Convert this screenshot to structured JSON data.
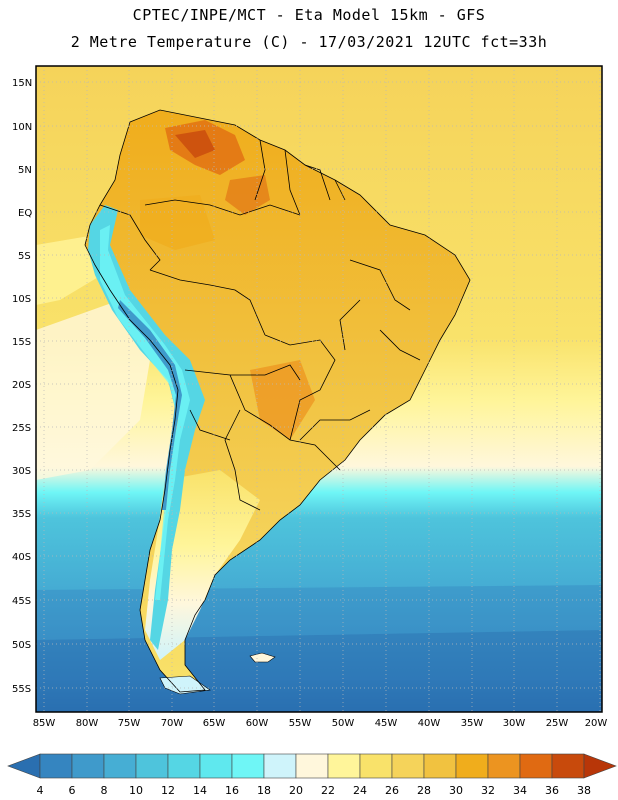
{
  "header": {
    "line1": "CPTEC/INPE/MCT -  Eta Model 15km - GFS",
    "line2": "2 Metre Temperature (C) - 17/03/2021 12UTC fct=33h"
  },
  "latitude_labels": [
    "15N",
    "10N",
    "5N",
    "EQ",
    "5S",
    "10S",
    "15S",
    "20S",
    "25S",
    "30S",
    "35S",
    "40S",
    "45S",
    "50S",
    "55S"
  ],
  "longitude_labels": [
    "85W",
    "80W",
    "75W",
    "70W",
    "65W",
    "60W",
    "55W",
    "50W",
    "45W",
    "40W",
    "35W",
    "30W",
    "25W",
    "20W"
  ],
  "legend": {
    "values": [
      "4",
      "6",
      "8",
      "10",
      "12",
      "14",
      "16",
      "18",
      "20",
      "22",
      "24",
      "26",
      "28",
      "30",
      "32",
      "34",
      "36",
      "38"
    ],
    "colors": [
      "#2a6fb0",
      "#3585c0",
      "#3f9acb",
      "#46aed4",
      "#4ec4dc",
      "#55d6e4",
      "#5fe8ee",
      "#6ff6f6",
      "#cff4fb",
      "#fff7dc",
      "#fff59a",
      "#f9e26a",
      "#f5d35a",
      "#f1c240",
      "#f0ad1c",
      "#ec9420",
      "#e06a12",
      "#c84a0c",
      "#b83608"
    ]
  }
}
